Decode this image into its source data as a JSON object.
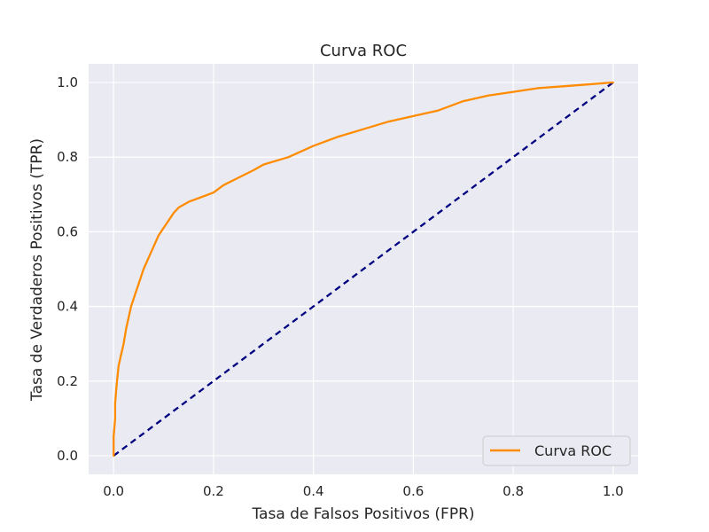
{
  "chart_data": {
    "type": "line",
    "title": "Curva ROC",
    "xlabel": "Tasa de Falsos Positivos (FPR)",
    "ylabel": "Tasa de Verdaderos Positivos (TPR)",
    "xlim": [
      -0.05,
      1.05
    ],
    "ylim": [
      -0.05,
      1.05
    ],
    "x_ticks": [
      0.0,
      0.2,
      0.4,
      0.6,
      0.8,
      1.0
    ],
    "x_tick_labels": [
      "0.0",
      "0.2",
      "0.4",
      "0.6",
      "0.8",
      "1.0"
    ],
    "y_ticks": [
      0.0,
      0.2,
      0.4,
      0.6,
      0.8,
      1.0
    ],
    "y_tick_labels": [
      "0.0",
      "0.2",
      "0.4",
      "0.6",
      "0.8",
      "1.0"
    ],
    "grid": true,
    "legend_position": "lower-right",
    "series": [
      {
        "name": "Curva ROC",
        "color": "#ff8c00",
        "style": "solid",
        "x": [
          0.0,
          0.0,
          0.003,
          0.003,
          0.006,
          0.01,
          0.015,
          0.02,
          0.025,
          0.03,
          0.035,
          0.04,
          0.045,
          0.05,
          0.055,
          0.06,
          0.07,
          0.08,
          0.09,
          0.1,
          0.11,
          0.12,
          0.13,
          0.15,
          0.17,
          0.2,
          0.22,
          0.25,
          0.28,
          0.3,
          0.35,
          0.4,
          0.45,
          0.5,
          0.55,
          0.6,
          0.65,
          0.7,
          0.75,
          0.8,
          0.85,
          0.9,
          0.95,
          1.0
        ],
        "y": [
          0.0,
          0.05,
          0.1,
          0.14,
          0.19,
          0.24,
          0.27,
          0.3,
          0.34,
          0.37,
          0.4,
          0.42,
          0.44,
          0.46,
          0.48,
          0.5,
          0.53,
          0.56,
          0.59,
          0.61,
          0.63,
          0.65,
          0.665,
          0.68,
          0.69,
          0.705,
          0.725,
          0.745,
          0.765,
          0.78,
          0.8,
          0.83,
          0.855,
          0.875,
          0.895,
          0.91,
          0.925,
          0.95,
          0.965,
          0.975,
          0.985,
          0.99,
          0.995,
          1.0
        ]
      },
      {
        "color": "#000080",
        "style": "dashed",
        "x": [
          0.0,
          1.0
        ],
        "y": [
          0.0,
          1.0
        ]
      }
    ]
  }
}
